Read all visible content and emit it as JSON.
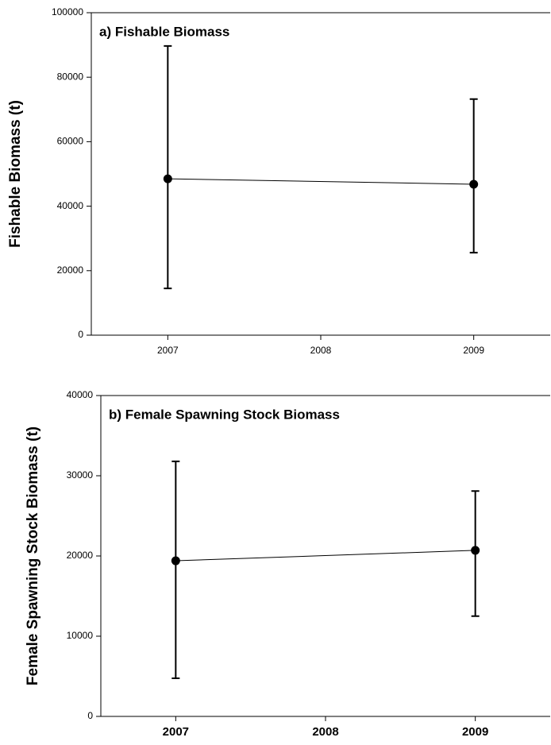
{
  "chart_data": [
    {
      "type": "line",
      "title": "a) Fishable Biomass",
      "ylabel": "Fishable Biomass (t)",
      "x": [
        2007,
        2009
      ],
      "values": [
        48500,
        46800
      ],
      "lower": [
        14500,
        25600
      ],
      "upper": [
        89700,
        73200
      ],
      "color": "#000000",
      "xlim": [
        2006.5,
        2009.5
      ],
      "ylim": [
        0,
        100000
      ],
      "xticks": [
        2007,
        2008,
        2009
      ],
      "yticks": [
        0,
        20000,
        40000,
        60000,
        80000,
        100000
      ]
    },
    {
      "type": "line",
      "title": "b) Female Spawning Stock Biomass",
      "ylabel": "Female Spawning Stock Biomass (t)",
      "x": [
        2007,
        2009
      ],
      "values": [
        19400,
        20700
      ],
      "lower": [
        4750,
        12500
      ],
      "upper": [
        31800,
        28100
      ],
      "color": "#000000",
      "xlim": [
        2006.5,
        2009.5
      ],
      "ylim": [
        0,
        40000
      ],
      "xticks": [
        2007,
        2008,
        2009
      ],
      "yticks": [
        0,
        10000,
        20000,
        30000,
        40000
      ]
    }
  ]
}
